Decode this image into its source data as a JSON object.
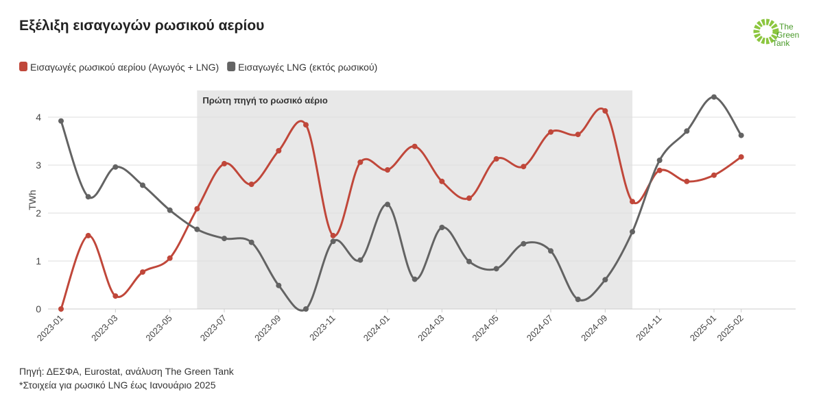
{
  "chart_data": {
    "type": "line",
    "title": "Εξέλιξη εισαγωγών ρωσικού αερίου",
    "y_label": "TWh",
    "x": [
      "2023-01",
      "2023-02",
      "2023-03",
      "2023-04",
      "2023-05",
      "2023-06",
      "2023-07",
      "2023-08",
      "2023-09",
      "2023-10",
      "2023-11",
      "2023-12",
      "2024-01",
      "2024-02",
      "2024-03",
      "2024-04",
      "2024-05",
      "2024-06",
      "2024-07",
      "2024-08",
      "2024-09",
      "2024-10",
      "2024-11",
      "2024-12",
      "2025-01",
      "2025-02"
    ],
    "series": [
      {
        "name": "Εισαγωγές ρωσικού αερίου (Αγωγός + LNG)",
        "color": "#c0473a",
        "values": [
          0,
          1.53,
          0.27,
          0.77,
          1.06,
          2.09,
          3.03,
          2.6,
          3.3,
          3.84,
          1.53,
          3.06,
          2.9,
          3.39,
          2.66,
          2.31,
          3.13,
          2.97,
          3.69,
          3.64,
          4.13,
          2.24,
          2.89,
          2.66,
          2.79,
          3.17
        ]
      },
      {
        "name": "Εισαγωγές LNG (εκτός ρωσικού)",
        "color": "#636363",
        "values": [
          3.92,
          2.34,
          2.96,
          2.58,
          2.06,
          1.66,
          1.47,
          1.39,
          0.49,
          0,
          1.41,
          1.02,
          2.18,
          0.62,
          1.7,
          0.99,
          0.84,
          1.36,
          1.21,
          0.2,
          0.61,
          1.61,
          3.1,
          3.71,
          4.42,
          3.62
        ]
      }
    ],
    "xlim": [
      "2023-01",
      "2025-04"
    ],
    "xticks": [
      "2023-01",
      "2023-03",
      "2023-05",
      "2023-07",
      "2023-09",
      "2023-11",
      "2024-01",
      "2024-03",
      "2024-05",
      "2024-07",
      "2024-09",
      "2024-11",
      "2025-01",
      "2025-02"
    ],
    "ylim": [
      0,
      4.5
    ],
    "yticks": [
      0,
      1,
      2,
      3,
      4
    ],
    "grid": true,
    "highlight": {
      "label": "Πρώτη πηγή το ρωσικό αέριο",
      "from": "2023-06",
      "to": "2024-10",
      "color": "#e8e8e8"
    },
    "notes": [
      "Πηγή: ΔΕΣΦΑ, Eurostat, ανάλυση The Green Tank",
      "*Στοιχεία για ρωσικό LNG έως Ιανουάριο 2025"
    ],
    "logo": [
      "The",
      "Green",
      "Tank"
    ]
  }
}
